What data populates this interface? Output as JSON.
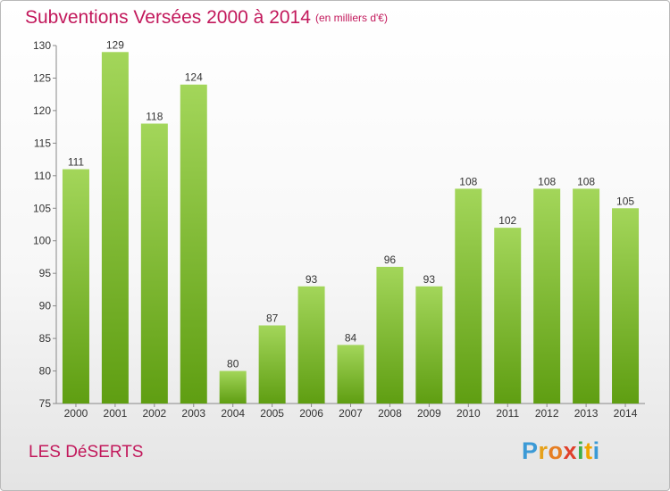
{
  "header": {
    "title": "Subventions Versées 2000 à 2014",
    "unit_note": "(en milliers d'€)"
  },
  "footer": {
    "commune": "LES DéSERTS",
    "logo_letters": [
      "P",
      "r",
      "o",
      "x",
      "i",
      "t",
      "i"
    ],
    "logo_colors": [
      "#3b9ad6",
      "#e6a11a",
      "#e67e22",
      "#e0402b",
      "#3fae49",
      "#f0a500",
      "#3b9ad6"
    ]
  },
  "colors": {
    "bar_top": "#a3d65a",
    "bar_bottom": "#5f9e12",
    "title": "#c2185b",
    "axis": "#888888"
  },
  "chart_data": {
    "type": "bar",
    "title": "Subventions Versées 2000 à 2014",
    "subtitle": "(en milliers d'€)",
    "categories": [
      "2000",
      "2001",
      "2002",
      "2003",
      "2004",
      "2005",
      "2006",
      "2007",
      "2008",
      "2009",
      "2010",
      "2011",
      "2012",
      "2013",
      "2014"
    ],
    "values": [
      111,
      129,
      118,
      124,
      80,
      87,
      93,
      84,
      96,
      93,
      108,
      102,
      108,
      108,
      105
    ],
    "ylim": [
      75,
      130
    ],
    "yticks": [
      75,
      80,
      85,
      90,
      95,
      100,
      105,
      110,
      115,
      120,
      125,
      130
    ],
    "grid": false,
    "data_labels": true
  }
}
